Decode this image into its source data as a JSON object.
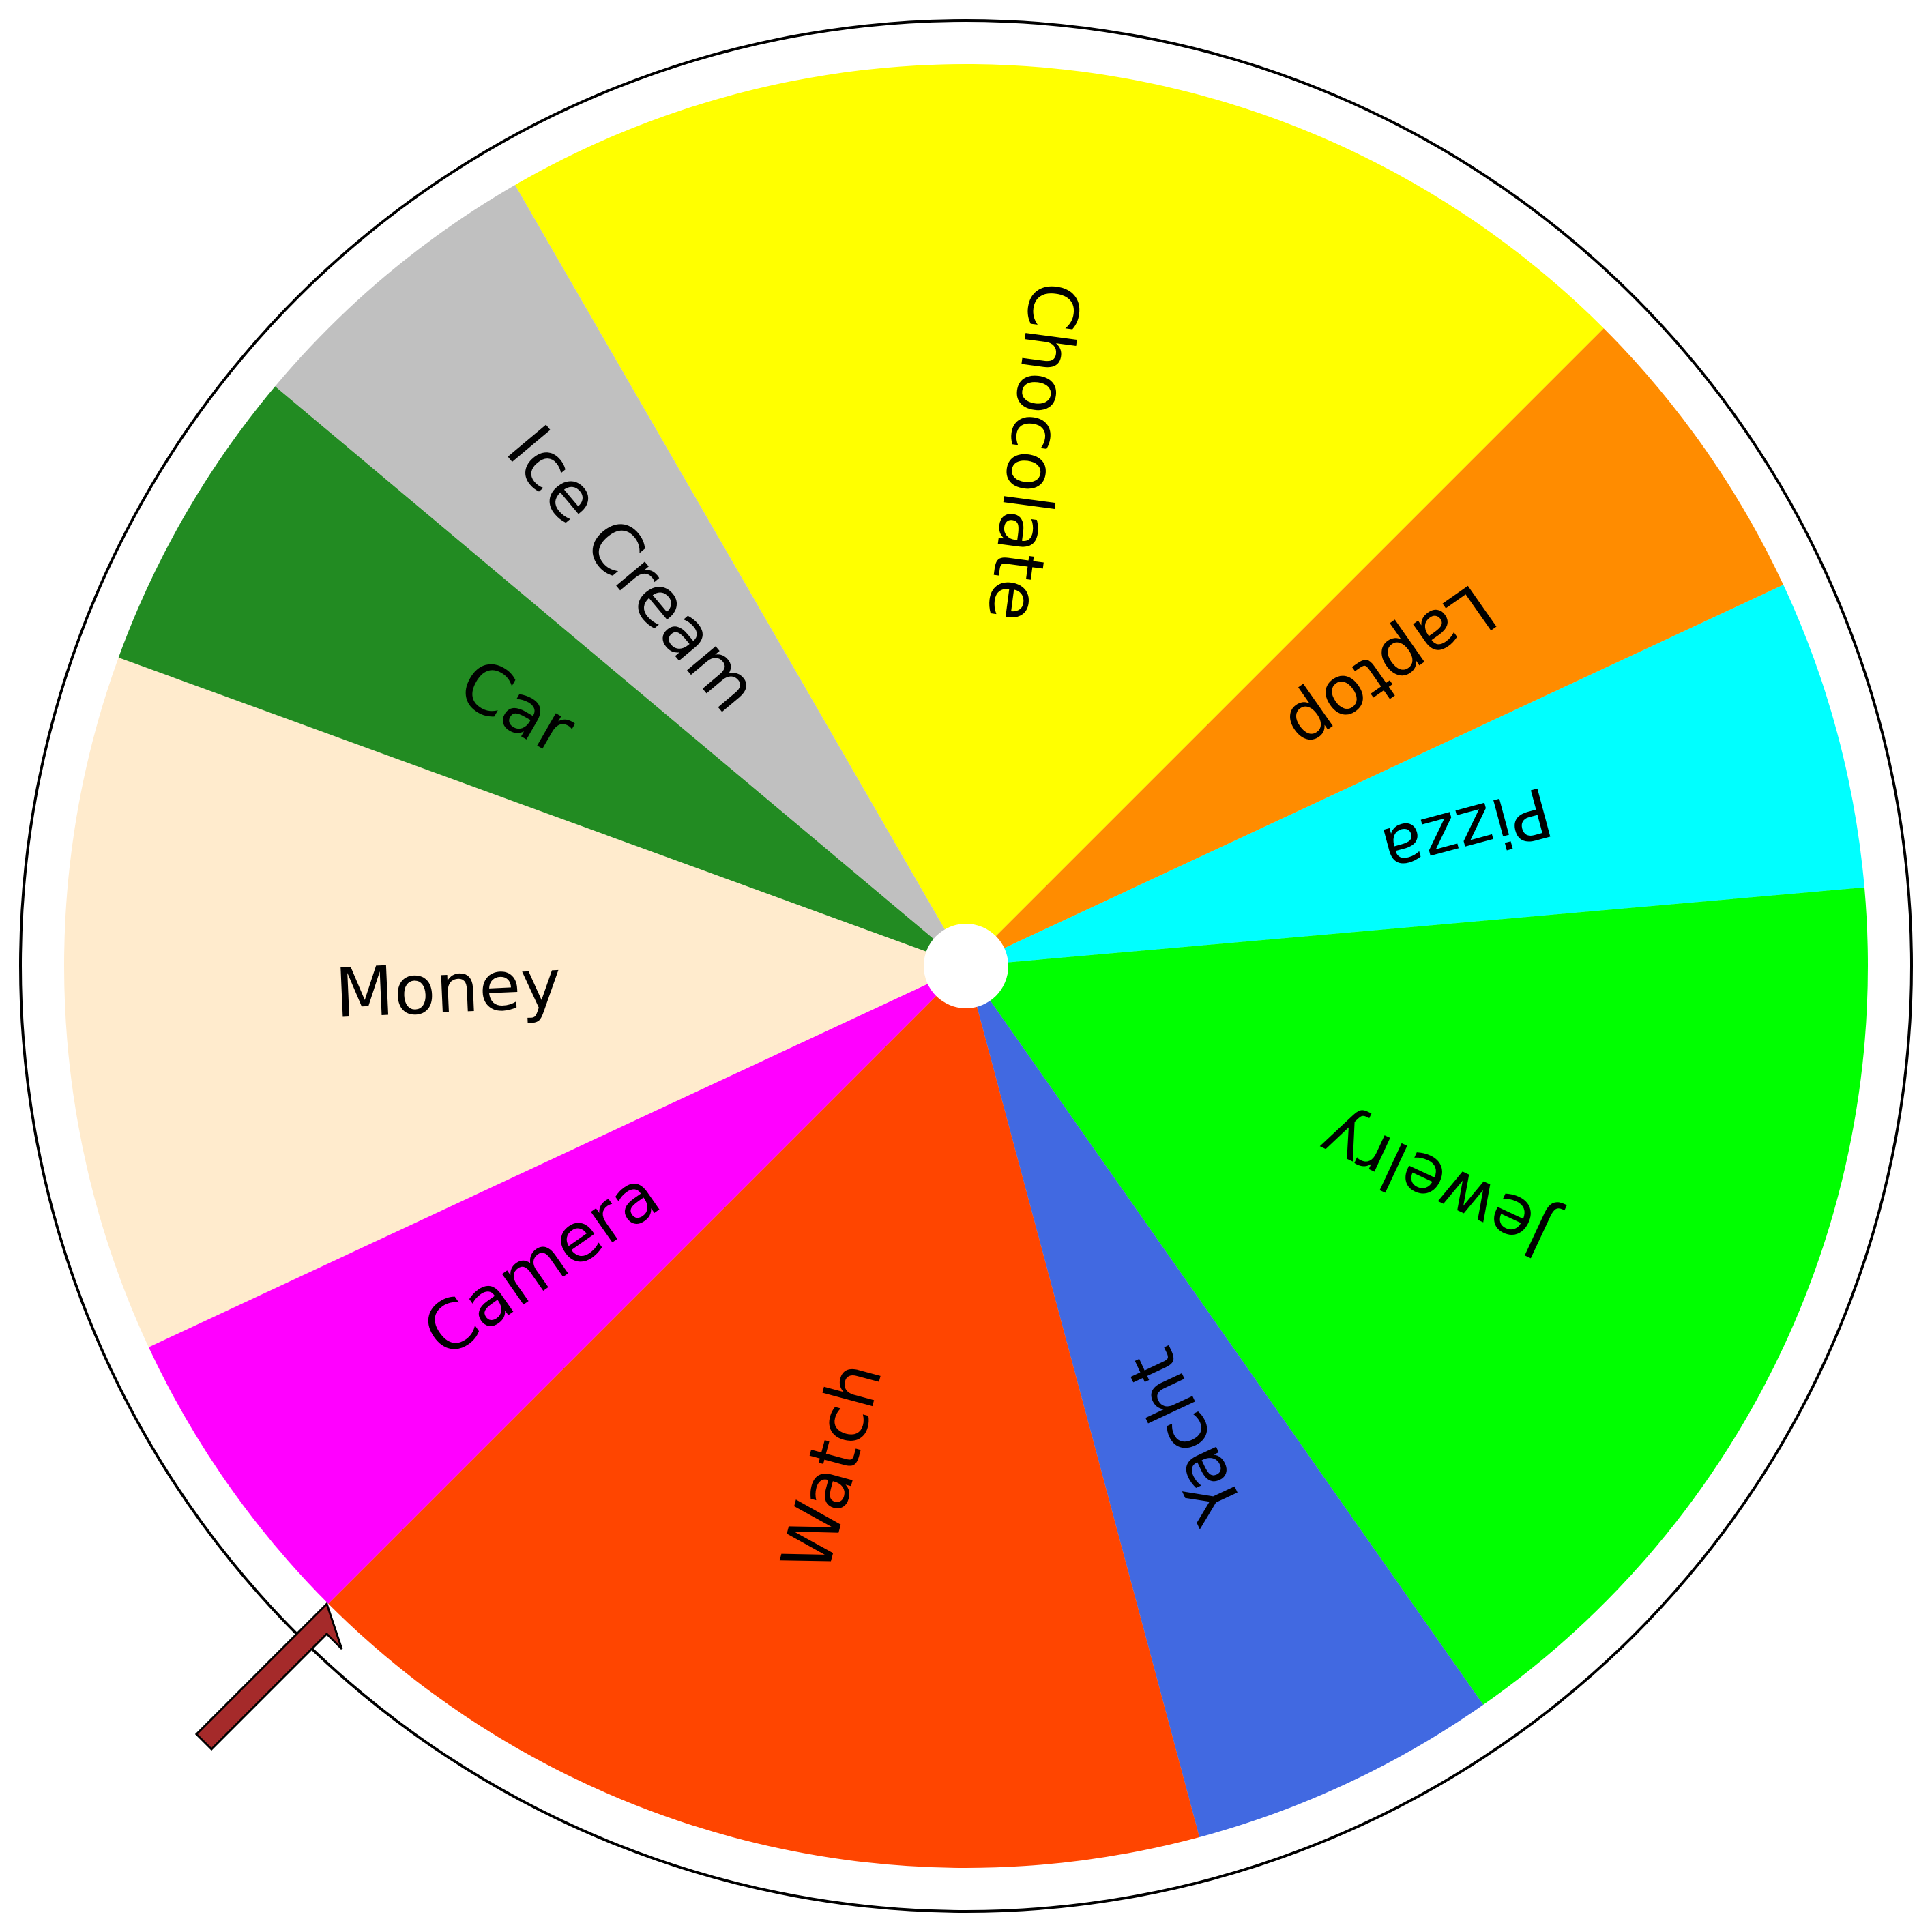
{
  "wheel": {
    "outline_color": "#000000",
    "rim_color": "#ffffff",
    "hub_color": "#ffffff",
    "pointer_color": "#a52a2a",
    "pointer_icon": "pointer-arrow-icon",
    "segments": [
      {
        "label": "Chocolate",
        "color": "#ffff00",
        "start": -120,
        "end": -45
      },
      {
        "label": "Laptop",
        "color": "#ff8c00",
        "start": -45,
        "end": -25
      },
      {
        "label": "Pizza",
        "color": "#00ffff",
        "start": -25,
        "end": -5
      },
      {
        "label": "Jewelry",
        "color": "#00ff00",
        "start": -5,
        "end": 55
      },
      {
        "label": "Yacht",
        "color": "#4169e1",
        "start": 55,
        "end": 75
      },
      {
        "label": "Watch",
        "color": "#ff4500",
        "start": 75,
        "end": 135
      },
      {
        "label": "Camera",
        "color": "#ff00ff",
        "start": 135,
        "end": 155
      },
      {
        "label": "Money",
        "color": "#ffebcd",
        "start": 155,
        "end": 200
      },
      {
        "label": "Car",
        "color": "#228b22",
        "start": 200,
        "end": 220
      },
      {
        "label": "Ice Cream",
        "color": "#c0c0c0",
        "start": 220,
        "end": 240
      }
    ]
  }
}
